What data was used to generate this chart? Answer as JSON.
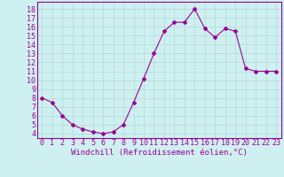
{
  "x": [
    0,
    1,
    2,
    3,
    4,
    5,
    6,
    7,
    8,
    9,
    10,
    11,
    12,
    13,
    14,
    15,
    16,
    17,
    18,
    19,
    20,
    21,
    22,
    23
  ],
  "y": [
    8.0,
    7.5,
    6.0,
    5.0,
    4.5,
    4.2,
    4.0,
    4.2,
    5.0,
    7.5,
    10.2,
    13.0,
    15.5,
    16.5,
    16.5,
    18.0,
    15.8,
    14.8,
    15.8,
    15.5,
    11.3,
    11.0,
    11.0,
    11.0
  ],
  "line_color": "#990099",
  "marker": "D",
  "marker_size": 2,
  "bg_color": "#cff0f0",
  "grid_color": "#b0d8d8",
  "xlabel": "Windchill (Refroidissement éolien,°C)",
  "xlabel_color": "#990099",
  "xlabel_fontsize": 6.5,
  "tick_color": "#990099",
  "tick_fontsize": 6,
  "ylim": [
    3.5,
    18.8
  ],
  "xlim": [
    -0.5,
    23.5
  ],
  "yticks": [
    4,
    5,
    6,
    7,
    8,
    9,
    10,
    11,
    12,
    13,
    14,
    15,
    16,
    17,
    18
  ],
  "xticks": [
    0,
    1,
    2,
    3,
    4,
    5,
    6,
    7,
    8,
    9,
    10,
    11,
    12,
    13,
    14,
    15,
    16,
    17,
    18,
    19,
    20,
    21,
    22,
    23
  ]
}
